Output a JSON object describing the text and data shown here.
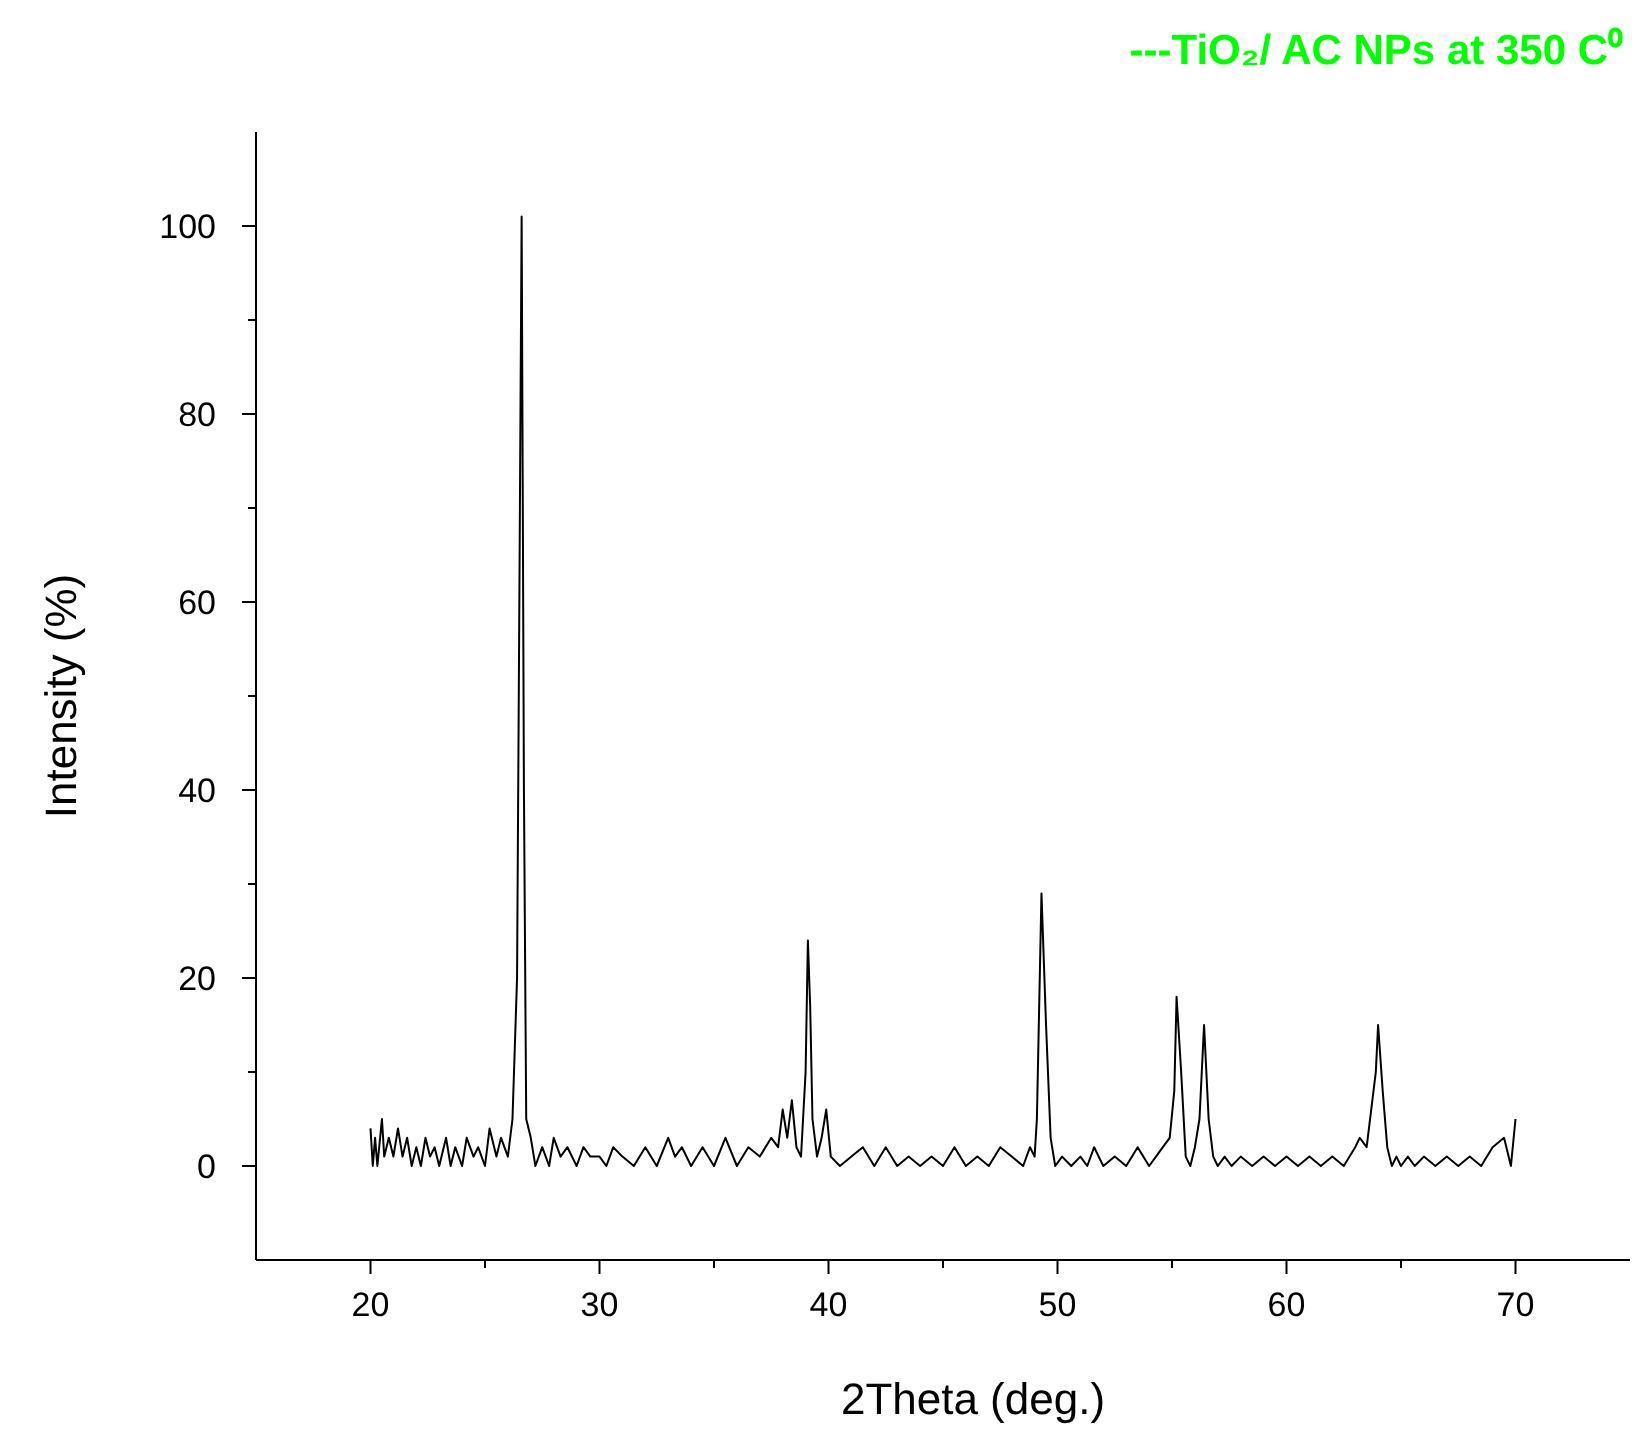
{
  "chart_data": {
    "type": "line",
    "title": "---TiO₂/ AC NPs at 350 C⁰",
    "xlabel": "2Theta (deg.)",
    "ylabel": "Intensity (%)",
    "xlim": [
      15,
      75
    ],
    "ylim": [
      -10,
      110
    ],
    "xticks": [
      20,
      30,
      40,
      50,
      60,
      70
    ],
    "yticks": [
      0,
      20,
      40,
      60,
      80,
      100
    ],
    "grid": false,
    "marker": "none",
    "line_style": "solid",
    "series": [
      {
        "color": "#000000",
        "x": [
          20,
          20.1,
          20.2,
          20.3,
          20.5,
          20.6,
          20.8,
          21,
          21.2,
          21.4,
          21.6,
          21.8,
          22,
          22.2,
          22.4,
          22.6,
          22.8,
          23,
          23.3,
          23.5,
          23.7,
          24,
          24.2,
          24.5,
          24.7,
          25,
          25.2,
          25.5,
          25.7,
          26,
          26.2,
          26.4,
          26.5,
          26.6,
          26.7,
          26.8,
          27,
          27.2,
          27.5,
          27.8,
          28,
          28.3,
          28.6,
          29,
          29.3,
          29.6,
          30,
          30.3,
          30.6,
          31,
          31.5,
          32,
          32.5,
          33,
          33.3,
          33.6,
          34,
          34.5,
          35,
          35.5,
          36,
          36.5,
          37,
          37.5,
          37.8,
          38,
          38.2,
          38.4,
          38.6,
          38.8,
          39,
          39.1,
          39.2,
          39.3,
          39.5,
          39.7,
          39.9,
          40.1,
          40.5,
          41,
          41.5,
          42,
          42.5,
          43,
          43.5,
          44,
          44.5,
          45,
          45.5,
          46,
          46.5,
          47,
          47.5,
          48,
          48.5,
          48.8,
          49,
          49.1,
          49.3,
          49.5,
          49.7,
          49.9,
          50.2,
          50.6,
          51,
          51.3,
          51.6,
          52,
          52.5,
          53,
          53.5,
          54,
          54.3,
          54.6,
          54.9,
          55.1,
          55.2,
          55.4,
          55.6,
          55.8,
          56,
          56.2,
          56.4,
          56.6,
          56.8,
          57,
          57.3,
          57.6,
          58,
          58.5,
          59,
          59.5,
          60,
          60.5,
          61,
          61.5,
          62,
          62.5,
          63,
          63.2,
          63.5,
          63.7,
          63.9,
          64,
          64.2,
          64.4,
          64.6,
          64.8,
          65,
          65.3,
          65.6,
          66,
          66.5,
          67,
          67.5,
          68,
          68.5,
          69,
          69.5,
          69.7,
          69.8,
          70
        ],
        "values": [
          4,
          0,
          3,
          0,
          5,
          1,
          3,
          1,
          4,
          1,
          3,
          0,
          2,
          0,
          3,
          1,
          2,
          0,
          3,
          0,
          2,
          0,
          3,
          1,
          2,
          0,
          4,
          1,
          3,
          1,
          5,
          20,
          60,
          101,
          40,
          5,
          3,
          0,
          2,
          0,
          3,
          1,
          2,
          0,
          2,
          1,
          1,
          0,
          2,
          1,
          0,
          2,
          0,
          3,
          1,
          2,
          0,
          2,
          0,
          3,
          0,
          2,
          1,
          3,
          2,
          6,
          3,
          7,
          2,
          1,
          10,
          24,
          17,
          5,
          1,
          3,
          6,
          1,
          0,
          1,
          2,
          0,
          2,
          0,
          1,
          0,
          1,
          0,
          2,
          0,
          1,
          0,
          2,
          1,
          0,
          2,
          1,
          5,
          29,
          15,
          3,
          0,
          1,
          0,
          1,
          0,
          2,
          0,
          1,
          0,
          2,
          0,
          1,
          2,
          3,
          8,
          18,
          10,
          1,
          0,
          2,
          5,
          15,
          5,
          1,
          0,
          1,
          0,
          1,
          0,
          1,
          0,
          1,
          0,
          1,
          0,
          1,
          0,
          2,
          3,
          2,
          6,
          10,
          15,
          8,
          2,
          0,
          1,
          0,
          1,
          0,
          1,
          0,
          1,
          0,
          1,
          0,
          2,
          3,
          1,
          0,
          5
        ]
      }
    ]
  }
}
